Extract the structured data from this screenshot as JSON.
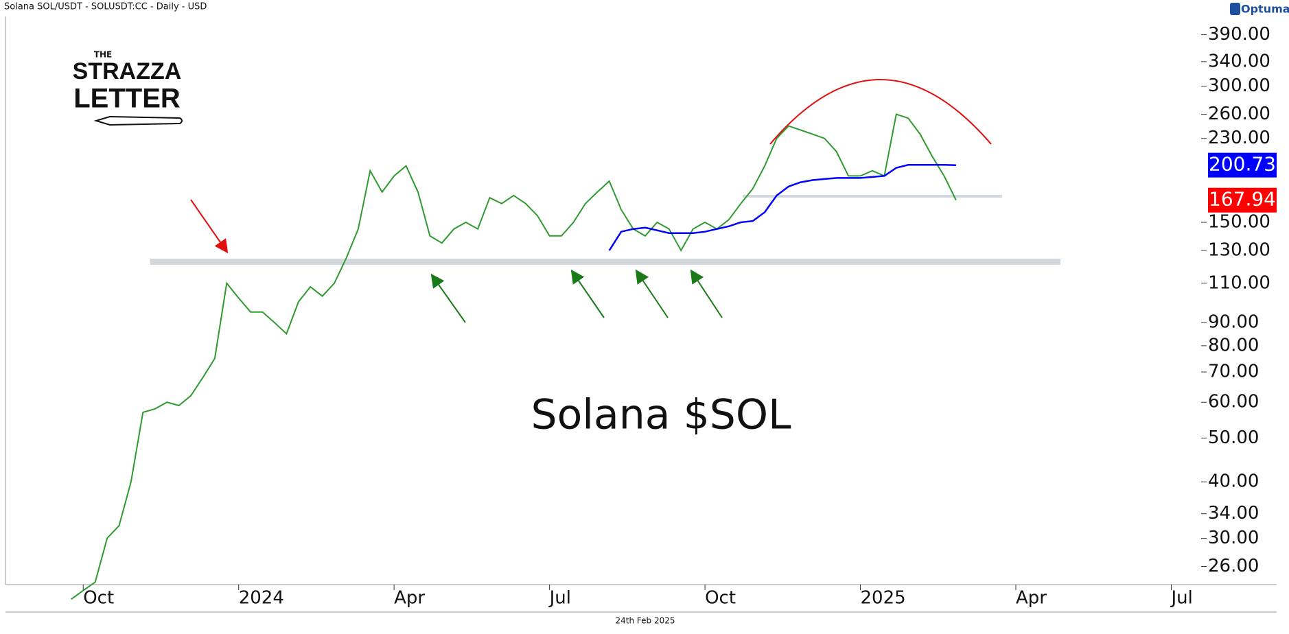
{
  "chart_data": {
    "type": "line",
    "title": "Solana SOL/USDT - SOLUSDT:CC - Daily - USD",
    "brand": "Optuma",
    "annotation": "Solana $SOL",
    "footer_date": "24th Feb 2025",
    "logo": {
      "top": "THE",
      "middle": "STRAZZA",
      "bottom": "LETTER"
    },
    "log_scale": true,
    "grid": false,
    "categories": [
      null,
      null,
      null,
      null,
      null,
      null,
      "Oct",
      null,
      null,
      null,
      null,
      null,
      null,
      null,
      null,
      null,
      null,
      null,
      null,
      "2024",
      null,
      null,
      null,
      null,
      null,
      null,
      null,
      null,
      null,
      null,
      null,
      null,
      "Apr",
      null,
      null,
      null,
      null,
      null,
      null,
      null,
      null,
      null,
      null,
      null,
      null,
      "Jul",
      null,
      null,
      null,
      null,
      null,
      null,
      null,
      null,
      null,
      null,
      null,
      null,
      "Oct",
      null,
      null,
      null,
      null,
      null,
      null,
      null,
      null,
      null,
      null,
      null,
      null,
      "2025",
      null,
      null,
      null,
      null,
      null,
      null,
      null,
      null,
      null,
      null,
      null,
      null,
      "Apr",
      null,
      null,
      null,
      null,
      null,
      null,
      null,
      null,
      null,
      null,
      null,
      null,
      "Jul",
      null,
      null
    ],
    "series": [
      {
        "color": "#2f9a2f",
        "label_color": "#ff0000",
        "values": [
          null,
          null,
          null,
          null,
          null,
          22,
          23,
          24,
          30,
          32,
          40,
          57,
          58,
          60,
          59,
          62,
          68,
          75,
          110,
          102,
          95,
          95,
          90,
          85,
          100,
          108,
          103,
          110,
          125,
          145,
          195,
          175,
          190,
          200,
          175,
          140,
          135,
          145,
          150,
          145,
          170,
          165,
          172,
          165,
          155,
          140,
          140,
          150,
          165,
          175,
          185,
          160,
          145,
          140,
          150,
          145,
          130,
          145,
          150,
          145,
          152,
          165,
          178,
          200,
          230,
          245,
          240,
          235,
          230,
          215,
          190,
          190,
          195,
          190,
          260,
          255,
          235,
          210,
          190,
          167.94,
          null,
          null,
          null,
          null,
          null,
          null,
          null,
          null,
          null,
          null,
          null,
          null,
          null,
          null,
          null,
          null,
          null,
          null,
          null,
          null
        ]
      },
      {
        "color": "#0000ff",
        "label_color": "#0000ff",
        "values": [
          null,
          null,
          null,
          null,
          null,
          null,
          null,
          null,
          null,
          null,
          null,
          null,
          null,
          null,
          null,
          null,
          null,
          null,
          null,
          null,
          null,
          null,
          null,
          null,
          null,
          null,
          null,
          null,
          null,
          null,
          null,
          null,
          null,
          null,
          null,
          null,
          null,
          null,
          null,
          null,
          null,
          null,
          null,
          null,
          null,
          null,
          null,
          null,
          null,
          null,
          130,
          143,
          145,
          146,
          144,
          142,
          142,
          142,
          143,
          145,
          147,
          150,
          151,
          158,
          172,
          180,
          184,
          186,
          187,
          188,
          188,
          188,
          189,
          190,
          198,
          201,
          201,
          201,
          201,
          200.73,
          null,
          null,
          null,
          null,
          null,
          null,
          null,
          null,
          null,
          null,
          null,
          null,
          null,
          null,
          null,
          null,
          null,
          null,
          null,
          null
        ]
      }
    ],
    "ylim": [
      23.7,
      428
    ],
    "yticks": [
      {
        "value": 390,
        "label": "390.00"
      },
      {
        "value": 340,
        "label": "340.00"
      },
      {
        "value": 300,
        "label": "300.00"
      },
      {
        "value": 260,
        "label": "260.00"
      },
      {
        "value": 230,
        "label": "230.00"
      },
      {
        "value": 150,
        "label": "150.00"
      },
      {
        "value": 130,
        "label": "130.00"
      },
      {
        "value": 110,
        "label": "110.00"
      },
      {
        "value": 90,
        "label": "90.00"
      },
      {
        "value": 80,
        "label": "80.00"
      },
      {
        "value": 70,
        "label": "70.00"
      },
      {
        "value": 60,
        "label": "60.00"
      },
      {
        "value": 50,
        "label": "50.00"
      },
      {
        "value": 40,
        "label": "40.00"
      },
      {
        "value": 34,
        "label": "34.00"
      },
      {
        "value": 30,
        "label": "30.00"
      },
      {
        "value": 26,
        "label": "26.00"
      }
    ]
  }
}
